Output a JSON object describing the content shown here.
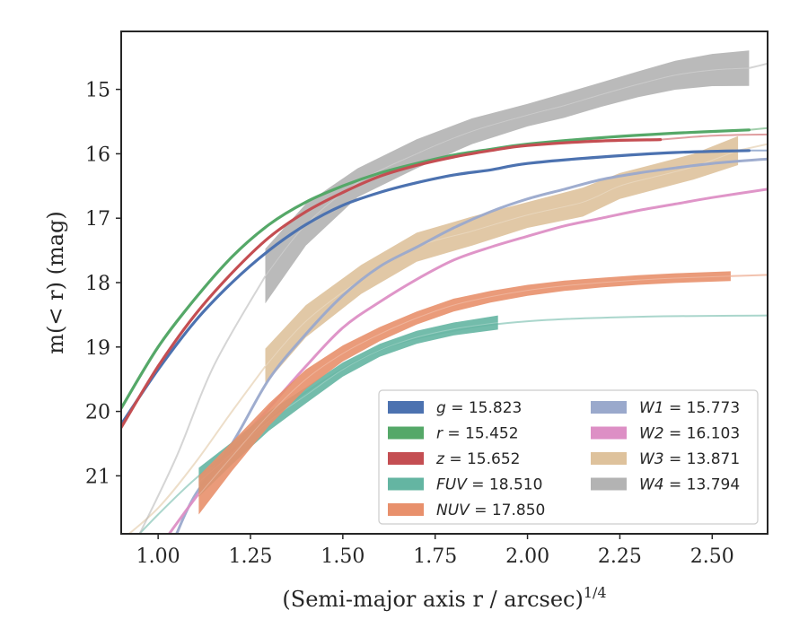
{
  "chart_data": {
    "type": "line",
    "xlabel": "(Semi-major axis r / arcsec)",
    "xlabel_sup": "1/4",
    "ylabel": "m(< r) (mag)",
    "xlim": [
      0.9,
      2.65
    ],
    "ylim": [
      21.9,
      14.1
    ],
    "y_inverted": true,
    "x_ticks": [
      1.0,
      1.25,
      1.5,
      1.75,
      2.0,
      2.25,
      2.5
    ],
    "x_tick_labels": [
      "1.00",
      "1.25",
      "1.50",
      "1.75",
      "2.00",
      "2.25",
      "2.50"
    ],
    "y_ticks": [
      15,
      16,
      17,
      18,
      19,
      20,
      21
    ],
    "y_tick_labels": [
      "15",
      "16",
      "17",
      "18",
      "19",
      "20",
      "21"
    ],
    "grid": false,
    "legend_position": "lower-right",
    "series": [
      {
        "name": "g",
        "value": "15.823",
        "color": "#4c72b0",
        "x": [
          0.9,
          1.0,
          1.1,
          1.2,
          1.3,
          1.4,
          1.5,
          1.6,
          1.7,
          1.8,
          1.9,
          2.0,
          2.2,
          2.4,
          2.6
        ],
        "y": [
          20.2,
          19.35,
          18.6,
          18.0,
          17.5,
          17.1,
          16.8,
          16.6,
          16.45,
          16.33,
          16.25,
          16.15,
          16.05,
          15.98,
          15.95
        ],
        "band": false,
        "fit_x": [
          2.6,
          2.65
        ],
        "fit_y": [
          15.95,
          15.95
        ]
      },
      {
        "name": "r",
        "value": "15.452",
        "color": "#55a868",
        "x": [
          0.9,
          1.0,
          1.1,
          1.2,
          1.3,
          1.4,
          1.5,
          1.6,
          1.7,
          1.8,
          1.9,
          2.0,
          2.2,
          2.4,
          2.6
        ],
        "y": [
          19.95,
          19.0,
          18.25,
          17.6,
          17.1,
          16.75,
          16.5,
          16.3,
          16.15,
          16.02,
          15.93,
          15.85,
          15.75,
          15.68,
          15.63
        ],
        "band": false,
        "fit_x": [
          2.6,
          2.65
        ],
        "fit_y": [
          15.63,
          15.6
        ]
      },
      {
        "name": "z",
        "value": "15.652",
        "color": "#c44e52",
        "x": [
          0.9,
          1.0,
          1.1,
          1.2,
          1.3,
          1.4,
          1.5,
          1.6,
          1.7,
          1.8,
          1.9,
          2.0,
          2.2,
          2.36
        ],
        "y": [
          20.25,
          19.3,
          18.5,
          17.85,
          17.3,
          16.9,
          16.6,
          16.35,
          16.18,
          16.05,
          15.95,
          15.87,
          15.8,
          15.78
        ],
        "band": false,
        "fit_x": [
          2.36,
          2.5,
          2.65
        ],
        "fit_y": [
          15.78,
          15.72,
          15.7
        ]
      },
      {
        "name": "FUV",
        "value": "18.510",
        "color": "#64b5a2",
        "x": [
          1.11,
          1.2,
          1.3,
          1.4,
          1.5,
          1.6,
          1.7,
          1.8,
          1.92
        ],
        "y": [
          21.1,
          20.65,
          20.15,
          19.75,
          19.35,
          19.05,
          18.85,
          18.72,
          18.62
        ],
        "band": true,
        "band_width": [
          0.45,
          0.35,
          0.3,
          0.25,
          0.22,
          0.2,
          0.2,
          0.2,
          0.22
        ],
        "fit_x": [
          0.9,
          1.0,
          1.1,
          1.2,
          1.4,
          1.6,
          1.8,
          2.0,
          2.3,
          2.65
        ],
        "fit_y": [
          22.2,
          21.6,
          21.05,
          20.6,
          19.7,
          19.05,
          18.75,
          18.6,
          18.53,
          18.51
        ]
      },
      {
        "name": "NUV",
        "value": "17.850",
        "color": "#e8906c",
        "x": [
          1.11,
          1.2,
          1.3,
          1.4,
          1.5,
          1.6,
          1.7,
          1.8,
          1.9,
          2.0,
          2.1,
          2.2,
          2.3,
          2.4,
          2.55
        ],
        "y": [
          21.3,
          20.7,
          20.05,
          19.5,
          19.1,
          18.8,
          18.55,
          18.35,
          18.22,
          18.12,
          18.05,
          18.0,
          17.96,
          17.93,
          17.9
        ],
        "band": true,
        "band_width": [
          0.6,
          0.45,
          0.35,
          0.3,
          0.25,
          0.22,
          0.2,
          0.2,
          0.18,
          0.17,
          0.16,
          0.15,
          0.15,
          0.15,
          0.15
        ],
        "fit_x": [
          2.55,
          2.65
        ],
        "fit_y": [
          17.9,
          17.88
        ]
      },
      {
        "name": "W1",
        "value": "15.773",
        "color": "#9aa9cc",
        "x": [
          1.05,
          1.1,
          1.2,
          1.3,
          1.4,
          1.5,
          1.6,
          1.7,
          1.8,
          1.9,
          2.0,
          2.1,
          2.2,
          2.3,
          2.4,
          2.5,
          2.65
        ],
        "y": [
          21.9,
          21.3,
          20.5,
          19.5,
          18.8,
          18.2,
          17.75,
          17.45,
          17.15,
          16.9,
          16.7,
          16.55,
          16.4,
          16.3,
          16.22,
          16.15,
          16.08
        ],
        "band": false,
        "fit_x": [],
        "fit_y": []
      },
      {
        "name": "W2",
        "value": "16.103",
        "color": "#dd8fc5",
        "x": [
          1.03,
          1.1,
          1.2,
          1.3,
          1.4,
          1.5,
          1.6,
          1.7,
          1.8,
          1.9,
          2.0,
          2.1,
          2.2,
          2.3,
          2.4,
          2.5,
          2.65
        ],
        "y": [
          21.9,
          21.35,
          20.6,
          19.95,
          19.3,
          18.7,
          18.3,
          17.95,
          17.65,
          17.45,
          17.28,
          17.12,
          17.0,
          16.88,
          16.78,
          16.68,
          16.55
        ],
        "band": false,
        "fit_x": [],
        "fit_y": []
      },
      {
        "name": "W3",
        "value": "13.871",
        "color": "#dec29c",
        "x": [
          1.29,
          1.4,
          1.55,
          1.7,
          1.85,
          2.0,
          2.15,
          2.25,
          2.35,
          2.45,
          2.57
        ],
        "y": [
          19.3,
          18.6,
          17.95,
          17.45,
          17.2,
          16.95,
          16.75,
          16.5,
          16.35,
          16.2,
          15.95
        ],
        "band": true,
        "band_width": [
          0.55,
          0.5,
          0.45,
          0.45,
          0.45,
          0.4,
          0.45,
          0.4,
          0.4,
          0.4,
          0.45
        ],
        "fit_x": [
          0.9,
          1.0,
          1.1,
          1.2,
          1.29
        ],
        "fit_y": [
          22.0,
          21.5,
          20.8,
          20.0,
          19.3
        ],
        "fit2_x": [
          2.57,
          2.65
        ],
        "fit2_y": [
          15.95,
          15.85
        ]
      },
      {
        "name": "W4",
        "value": "13.794",
        "color": "#b3b3b3",
        "x": [
          1.29,
          1.4,
          1.54,
          1.7,
          1.85,
          2.0,
          2.1,
          2.2,
          2.3,
          2.4,
          2.5,
          2.6
        ],
        "y": [
          17.9,
          17.1,
          16.45,
          16.0,
          15.65,
          15.4,
          15.25,
          15.08,
          14.92,
          14.78,
          14.7,
          14.67
        ],
        "band": true,
        "band_width": [
          0.85,
          0.65,
          0.45,
          0.45,
          0.4,
          0.35,
          0.38,
          0.38,
          0.4,
          0.45,
          0.5,
          0.55
        ],
        "fit_x": [
          0.95,
          1.05,
          1.15,
          1.29
        ],
        "fit_y": [
          21.9,
          20.7,
          19.3,
          17.9
        ],
        "fit2_x": [
          2.6,
          2.65
        ],
        "fit2_y": [
          14.67,
          14.6
        ]
      }
    ],
    "legend": {
      "columns": [
        [
          {
            "sym": "g",
            "val": "15.823",
            "color": "#4c72b0"
          },
          {
            "sym": "r",
            "val": "15.452",
            "color": "#55a868"
          },
          {
            "sym": "z",
            "val": "15.652",
            "color": "#c44e52"
          },
          {
            "sym": "FUV",
            "val": "18.510",
            "color": "#64b5a2"
          },
          {
            "sym": "NUV",
            "val": "17.850",
            "color": "#e8906c"
          }
        ],
        [
          {
            "sym": "W1",
            "val": "15.773",
            "color": "#9aa9cc"
          },
          {
            "sym": "W2",
            "val": "16.103",
            "color": "#dd8fc5"
          },
          {
            "sym": "W3",
            "val": "13.871",
            "color": "#dec29c"
          },
          {
            "sym": "W4",
            "val": "13.794",
            "color": "#b3b3b3"
          }
        ]
      ]
    }
  }
}
